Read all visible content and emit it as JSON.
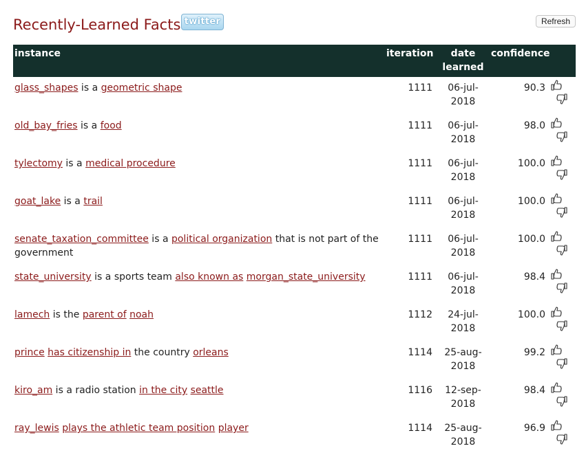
{
  "header": {
    "title": "Recently-Learned Facts",
    "twitter_label": "twitter",
    "refresh_label": "Refresh"
  },
  "table": {
    "columns": {
      "instance": "instance",
      "iteration": "iteration",
      "date_learned": "date learned",
      "confidence": "confidence"
    },
    "rows": [
      {
        "parts": [
          {
            "text": "glass_shapes",
            "link": true
          },
          {
            "text": " is a ",
            "link": false
          },
          {
            "text": "geometric shape",
            "link": true
          }
        ],
        "iteration": "1111",
        "date_top": "06-jul-",
        "date_bottom": "2018",
        "confidence": "90.3"
      },
      {
        "parts": [
          {
            "text": "old_bay_fries",
            "link": true
          },
          {
            "text": " is a ",
            "link": false
          },
          {
            "text": "food",
            "link": true
          }
        ],
        "iteration": "1111",
        "date_top": "06-jul-",
        "date_bottom": "2018",
        "confidence": "98.0"
      },
      {
        "parts": [
          {
            "text": "tylectomy",
            "link": true
          },
          {
            "text": " is a ",
            "link": false
          },
          {
            "text": "medical procedure",
            "link": true
          }
        ],
        "iteration": "1111",
        "date_top": "06-jul-",
        "date_bottom": "2018",
        "confidence": "100.0"
      },
      {
        "parts": [
          {
            "text": "goat_lake",
            "link": true
          },
          {
            "text": " is a ",
            "link": false
          },
          {
            "text": "trail",
            "link": true
          }
        ],
        "iteration": "1111",
        "date_top": "06-jul-",
        "date_bottom": "2018",
        "confidence": "100.0"
      },
      {
        "parts": [
          {
            "text": "senate_taxation_committee",
            "link": true
          },
          {
            "text": " is a ",
            "link": false
          },
          {
            "text": "political organization",
            "link": true
          },
          {
            "text": " that is not part of the government",
            "link": false
          }
        ],
        "iteration": "1111",
        "date_top": "06-jul-",
        "date_bottom": "2018",
        "confidence": "100.0"
      },
      {
        "parts": [
          {
            "text": "state_university",
            "link": true
          },
          {
            "text": " is a sports team ",
            "link": false
          },
          {
            "text": "also known as",
            "link": true
          },
          {
            "text": " ",
            "link": false
          },
          {
            "text": "morgan_state_university",
            "link": true
          }
        ],
        "iteration": "1111",
        "date_top": "06-jul-",
        "date_bottom": "2018",
        "confidence": "98.4"
      },
      {
        "parts": [
          {
            "text": "lamech",
            "link": true
          },
          {
            "text": " is the ",
            "link": false
          },
          {
            "text": "parent of",
            "link": true
          },
          {
            "text": " ",
            "link": false
          },
          {
            "text": "noah",
            "link": true
          }
        ],
        "iteration": "1112",
        "date_top": "24-jul-",
        "date_bottom": "2018",
        "confidence": "100.0"
      },
      {
        "parts": [
          {
            "text": "prince",
            "link": true
          },
          {
            "text": " ",
            "link": false
          },
          {
            "text": "has citizenship in",
            "link": true
          },
          {
            "text": " the country ",
            "link": false
          },
          {
            "text": "orleans",
            "link": true
          }
        ],
        "iteration": "1114",
        "date_top": "25-aug-",
        "date_bottom": "2018",
        "confidence": "99.2"
      },
      {
        "parts": [
          {
            "text": "kiro_am",
            "link": true
          },
          {
            "text": " is a radio station ",
            "link": false
          },
          {
            "text": "in the city",
            "link": true
          },
          {
            "text": " ",
            "link": false
          },
          {
            "text": "seattle",
            "link": true
          }
        ],
        "iteration": "1116",
        "date_top": "12-sep-",
        "date_bottom": "2018",
        "confidence": "98.4"
      },
      {
        "parts": [
          {
            "text": "ray_lewis",
            "link": true
          },
          {
            "text": " ",
            "link": false
          },
          {
            "text": "plays the athletic team position",
            "link": true
          },
          {
            "text": " ",
            "link": false
          },
          {
            "text": "player",
            "link": true
          }
        ],
        "iteration": "1114",
        "date_top": "25-aug-",
        "date_bottom": "2018",
        "confidence": "96.9"
      }
    ]
  },
  "icons": {
    "vote_up": "thumbs-up-icon",
    "vote_down": "thumbs-down-icon"
  }
}
